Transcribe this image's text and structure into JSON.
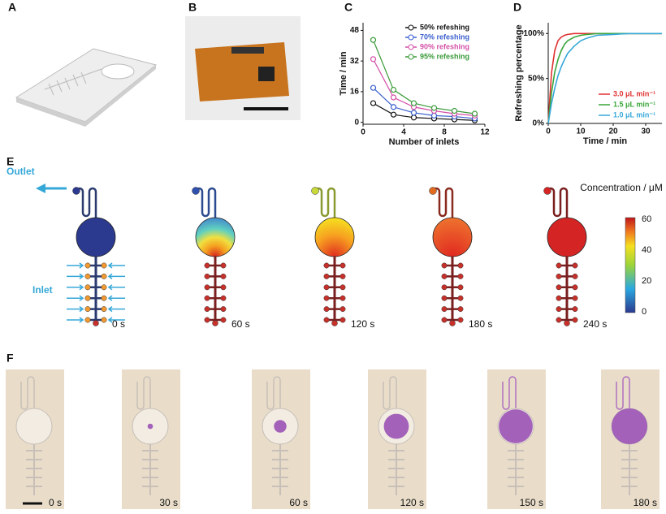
{
  "panel_labels": [
    "A",
    "B",
    "C",
    "D",
    "E",
    "F"
  ],
  "chart_data": [
    {
      "type": "line",
      "markers": true,
      "x": [
        1,
        3,
        5,
        7,
        9,
        11
      ],
      "series": [
        {
          "name": "50% refeshing",
          "color": "#111111",
          "values": [
            10,
            4,
            2.5,
            2,
            1.5,
            1
          ]
        },
        {
          "name": "70% refeshing",
          "color": "#3a5fcd",
          "values": [
            18,
            8,
            5,
            3.5,
            3,
            2
          ]
        },
        {
          "name": "90% refeshing",
          "color": "#d44fa7",
          "values": [
            33,
            13,
            8,
            6,
            4.5,
            3.5
          ]
        },
        {
          "name": "95% refeshing",
          "color": "#3a9a3a",
          "values": [
            43,
            17,
            10,
            7.5,
            6,
            4.5
          ]
        }
      ],
      "xlim": [
        0,
        12
      ],
      "ylim": [
        -1,
        52
      ],
      "xticks": [
        0,
        4,
        8,
        12
      ],
      "yticks": [
        0,
        16,
        32,
        48
      ],
      "xlabel": "Number of inlets",
      "ylabel": "Time / min",
      "legend": "upper right"
    },
    {
      "type": "line",
      "markers": false,
      "x": [
        0,
        1,
        2,
        3,
        4,
        5,
        6,
        8,
        10,
        12,
        15,
        20,
        25,
        30,
        35
      ],
      "series": [
        {
          "name": "3.0 μL min⁻¹",
          "color": "#e03030",
          "values": [
            0,
            56,
            81,
            92,
            96,
            98,
            99,
            100,
            100,
            100,
            100,
            100,
            100,
            100,
            100
          ]
        },
        {
          "name": "1.5 μL min⁻¹",
          "color": "#3aa63a",
          "values": [
            0,
            34,
            57,
            71,
            81,
            88,
            92,
            96,
            98,
            99,
            100,
            100,
            100,
            100,
            100
          ]
        },
        {
          "name": "1.0 μL min⁻¹",
          "color": "#35a8d8",
          "values": [
            0,
            22,
            39,
            53,
            63,
            71,
            78,
            86,
            92,
            95,
            98,
            99,
            100,
            100,
            100
          ]
        }
      ],
      "xlim": [
        0,
        35
      ],
      "ylim": [
        0,
        112
      ],
      "xticks": [
        0,
        10,
        20,
        30
      ],
      "yticks": [
        {
          "value": 0,
          "label": "0%"
        },
        {
          "value": 50,
          "label": "50%"
        },
        {
          "value": 100,
          "label": "100%"
        }
      ],
      "xlabel": "Time / min",
      "ylabel": "Refreshing percentage",
      "legend": "lower right"
    }
  ],
  "panel_e": {
    "outlet": "Outlet",
    "inlet": "Inlet",
    "times": [
      "0 s",
      "60 s",
      "120 s",
      "180 s",
      "240 s"
    ],
    "colorbar_label": "Concentration / μM",
    "colorbar_ticks": [
      0,
      20,
      40,
      60
    ]
  },
  "panel_f": {
    "times": [
      "0 s",
      "30 s",
      "60 s",
      "120 s",
      "150 s",
      "180 s"
    ]
  }
}
